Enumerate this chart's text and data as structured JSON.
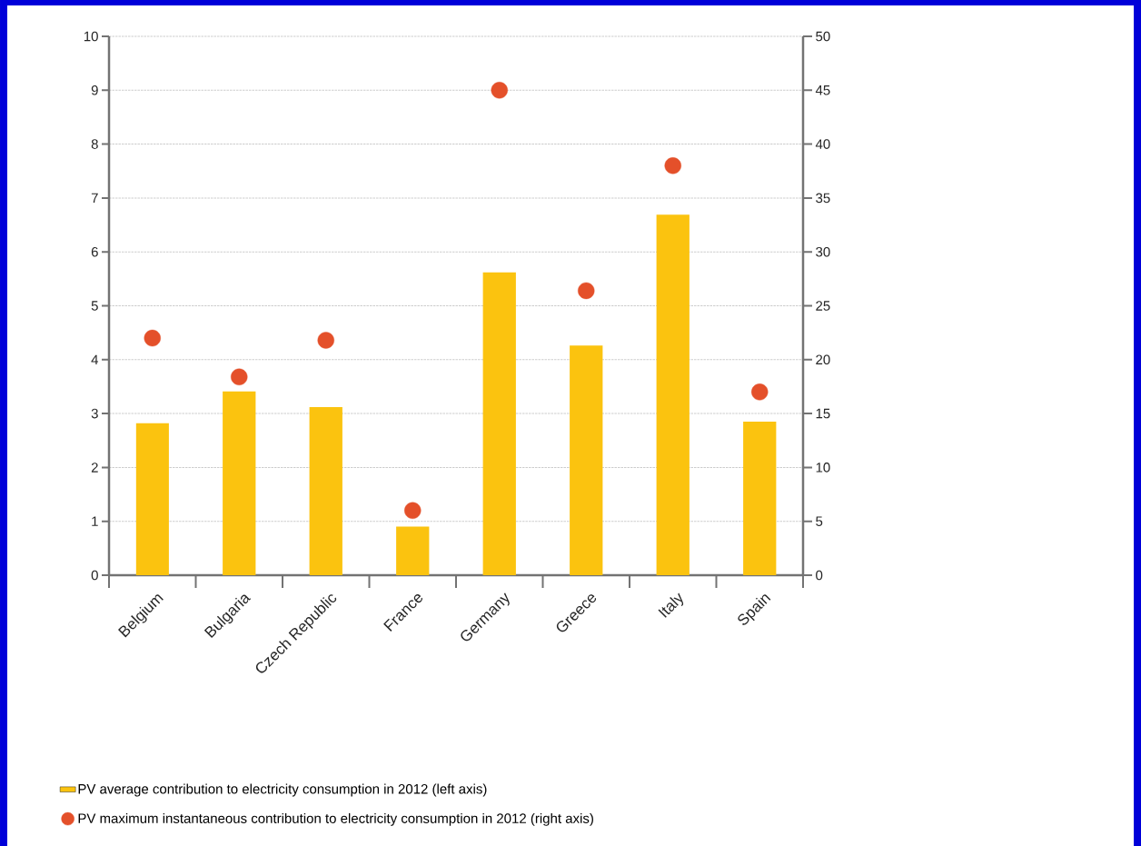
{
  "chart_data": {
    "type": "bar",
    "categories": [
      "Belgium",
      "Bulgaria",
      "Czech Republic",
      "France",
      "Germany",
      "Greece",
      "Italy",
      "Spain"
    ],
    "series": [
      {
        "name": "PV average contribution to electricity consumption in 2012 (left axis)",
        "color": "#fbc30f",
        "values": [
          2.82,
          3.41,
          3.12,
          0.9,
          5.62,
          4.26,
          6.69,
          2.85
        ]
      },
      {
        "name": "PV maximum instantaneous contribution to electricity consumption in 2012 (right axis)",
        "type": "scatter",
        "axis": "y2",
        "color": "#e4502a",
        "values": [
          22.0,
          18.4,
          21.8,
          6.0,
          45.0,
          26.4,
          38.0,
          17.0
        ]
      }
    ],
    "ylim": [
      0,
      10
    ],
    "yticks": [
      0,
      1,
      2,
      3,
      4,
      5,
      6,
      7,
      8,
      9,
      10
    ],
    "y2lim": [
      0,
      50
    ],
    "y2ticks": [
      0,
      5,
      10,
      15,
      20,
      25,
      30,
      35,
      40,
      45,
      50
    ],
    "grid": "y",
    "legend": "bottom"
  }
}
